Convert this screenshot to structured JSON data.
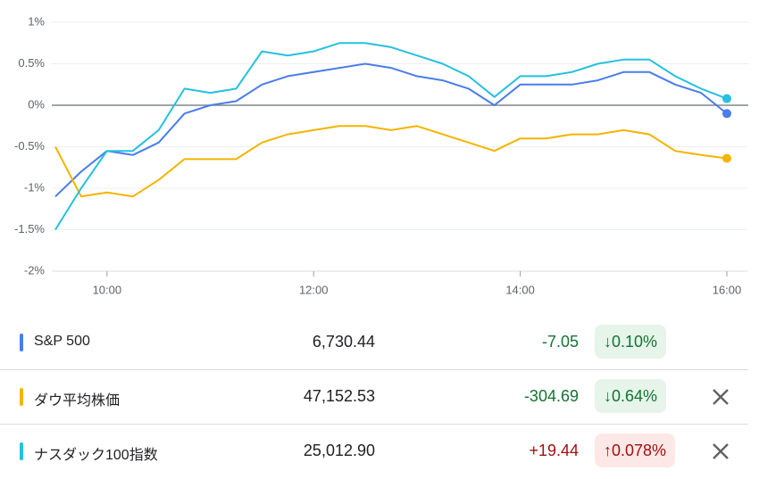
{
  "chart_data": {
    "type": "line",
    "x": [
      9.5,
      9.75,
      10,
      10.25,
      10.5,
      10.75,
      11,
      11.25,
      11.5,
      11.75,
      12,
      12.25,
      12.5,
      12.75,
      13,
      13.25,
      13.5,
      13.75,
      14,
      14.25,
      14.5,
      14.75,
      15,
      15.25,
      15.5,
      15.75,
      16
    ],
    "xlim": [
      9.5,
      16
    ],
    "xticks": [
      {
        "value": 10,
        "label": "10:00"
      },
      {
        "value": 12,
        "label": "12:00"
      },
      {
        "value": 14,
        "label": "14:00"
      },
      {
        "value": 16,
        "label": "16:00"
      }
    ],
    "ylim": [
      -2,
      1
    ],
    "yticks": [
      {
        "value": -2,
        "label": "-2%"
      },
      {
        "value": -1.5,
        "label": "-1.5%"
      },
      {
        "value": -1,
        "label": "-1%"
      },
      {
        "value": -0.5,
        "label": "-0.5%"
      },
      {
        "value": 0,
        "label": "0%"
      },
      {
        "value": 0.5,
        "label": "0.5%"
      },
      {
        "value": 1,
        "label": "1%"
      }
    ],
    "grid": true,
    "series": [
      {
        "name": "S&P 500",
        "color": "#4a7cec",
        "values": [
          -1.1,
          -0.8,
          -0.55,
          -0.6,
          -0.45,
          -0.1,
          0.0,
          0.05,
          0.25,
          0.35,
          0.4,
          0.45,
          0.5,
          0.45,
          0.35,
          0.3,
          0.2,
          0.0,
          0.25,
          0.25,
          0.25,
          0.3,
          0.4,
          0.4,
          0.25,
          0.15,
          -0.1
        ]
      },
      {
        "name": "ダウ平均株価",
        "color": "#f4b400",
        "values": [
          -0.5,
          -1.1,
          -1.05,
          -1.1,
          -0.9,
          -0.65,
          -0.65,
          -0.65,
          -0.45,
          -0.35,
          -0.3,
          -0.25,
          -0.25,
          -0.3,
          -0.25,
          -0.35,
          -0.45,
          -0.55,
          -0.4,
          -0.4,
          -0.35,
          -0.35,
          -0.3,
          -0.35,
          -0.55,
          -0.6,
          -0.64
        ]
      },
      {
        "name": "ナスダック100指数",
        "color": "#24c1e0",
        "values": [
          -1.5,
          -1.0,
          -0.55,
          -0.55,
          -0.3,
          0.2,
          0.15,
          0.2,
          0.65,
          0.6,
          0.65,
          0.75,
          0.75,
          0.7,
          0.6,
          0.5,
          0.35,
          0.1,
          0.35,
          0.35,
          0.4,
          0.5,
          0.55,
          0.55,
          0.35,
          0.2,
          0.08
        ]
      }
    ]
  },
  "table": {
    "rows": [
      {
        "value": "6,730.44",
        "change": "-7.05",
        "percent": "↓0.10%",
        "trend": "down"
      },
      {
        "value": "47,152.53",
        "change": "-304.69",
        "percent": "↓0.64%",
        "trend": "down"
      },
      {
        "value": "25,012.90",
        "change": "+19.44",
        "percent": "↑0.078%",
        "trend": "up"
      }
    ]
  }
}
